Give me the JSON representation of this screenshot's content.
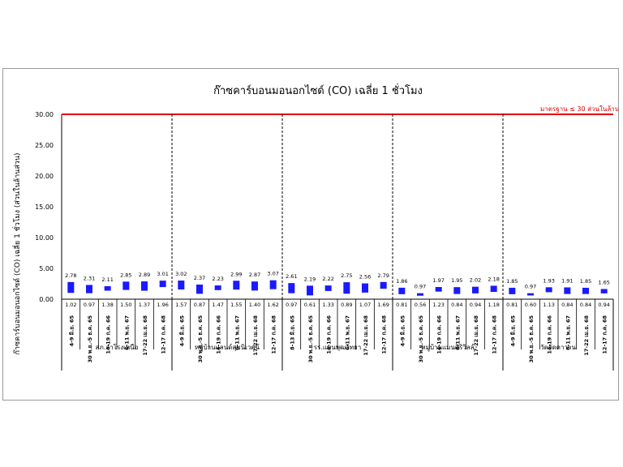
{
  "chart_data": {
    "type": "bar",
    "title": "ก๊าซคาร์บอนมอนอกไซด์ (CO) เฉลี่ย 1 ชั่วโมง",
    "ylabel": "ก๊าซคาร์บอนมอนอกไซด์ (CO) เฉลี่ย 1 ชั่วโมง (ส่วนในล้านส่วน)",
    "xlabel": "",
    "ylim": [
      0,
      30
    ],
    "yticks": [
      "0.00",
      "5.00",
      "10.00",
      "15.00",
      "20.00",
      "25.00",
      "30.00"
    ],
    "standard": {
      "value": 30,
      "label": "มาตรฐาน ≤ 30 ส่วนในล้านส่วน",
      "color": "#e00000"
    },
    "bar_color": "#1a1aff",
    "groups": [
      {
        "name": "สภ.ลำโรงเหนือ",
        "categories": [
          "4-9 มิ.ย. 65",
          "30 พ.ย.-5 ธ.ค. 65",
          "14-19 ก.ค. 66",
          "6-11 พ.ย. 67",
          "17-22 เม.ย. 68",
          "12-17 ก.ค. 68"
        ],
        "max": [
          2.78,
          2.31,
          2.11,
          2.85,
          2.89,
          3.01
        ],
        "min": [
          1.02,
          0.97,
          1.38,
          1.5,
          1.37,
          1.96
        ]
      },
      {
        "name": "หมู่บ้านแลนด์สุขนิเวศน์",
        "categories": [
          "4-9 มิ.ย. 65",
          "30 พ.ย.-5 ธ.ค. 65",
          "14-19 ก.ค. 66",
          "6-11 พ.ย. 67",
          "17-22 เม.ย. 68",
          "12-17 ก.ค. 68"
        ],
        "max": [
          3.02,
          2.37,
          2.23,
          2.99,
          2.87,
          3.07
        ],
        "min": [
          1.57,
          0.87,
          1.47,
          1.55,
          1.4,
          1.62
        ]
      },
      {
        "name": "รร.แพนพุฒวิทยา",
        "categories": [
          "8-13 มิ.ย. 65",
          "30 พ.ย.-5 ธ.ค. 65",
          "14-19 ก.ค. 66",
          "6-11 พ.ย. 67",
          "17-22 เม.ย. 68",
          "12-17 ก.ค. 68"
        ],
        "max": [
          2.61,
          2.19,
          2.22,
          2.75,
          2.56,
          2.79
        ],
        "min": [
          0.97,
          0.61,
          1.33,
          0.89,
          1.07,
          1.69
        ]
      },
      {
        "name": "หมู่บ้านแมนศิริวิลล์",
        "categories": [
          "4-9 มิ.ย. 65",
          "30 พ.ย.-5 ธ.ค. 65",
          "14-19 ก.ค. 66",
          "6-11 พ.ย. 67",
          "17-22 เม.ย. 68",
          "12-17 ก.ค. 68"
        ],
        "max": [
          1.86,
          0.97,
          1.97,
          1.95,
          2.02,
          2.18
        ],
        "min": [
          0.81,
          0.56,
          1.23,
          0.84,
          0.94,
          1.18
        ]
      },
      {
        "name": "วัดจัดคาวาน",
        "categories": [
          "4-9 มิ.ย. 65",
          "30 พ.ย.-5 ธ.ค. 65",
          "14-19 ก.ค. 66",
          "6-11 พ.ย. 67",
          "17-22 เม.ย. 68",
          "12-17 ก.ค. 68"
        ],
        "max": [
          1.85,
          0.97,
          1.93,
          1.91,
          1.85,
          1.65
        ],
        "min": [
          0.81,
          0.6,
          1.13,
          0.84,
          0.84,
          0.94
        ]
      }
    ]
  }
}
